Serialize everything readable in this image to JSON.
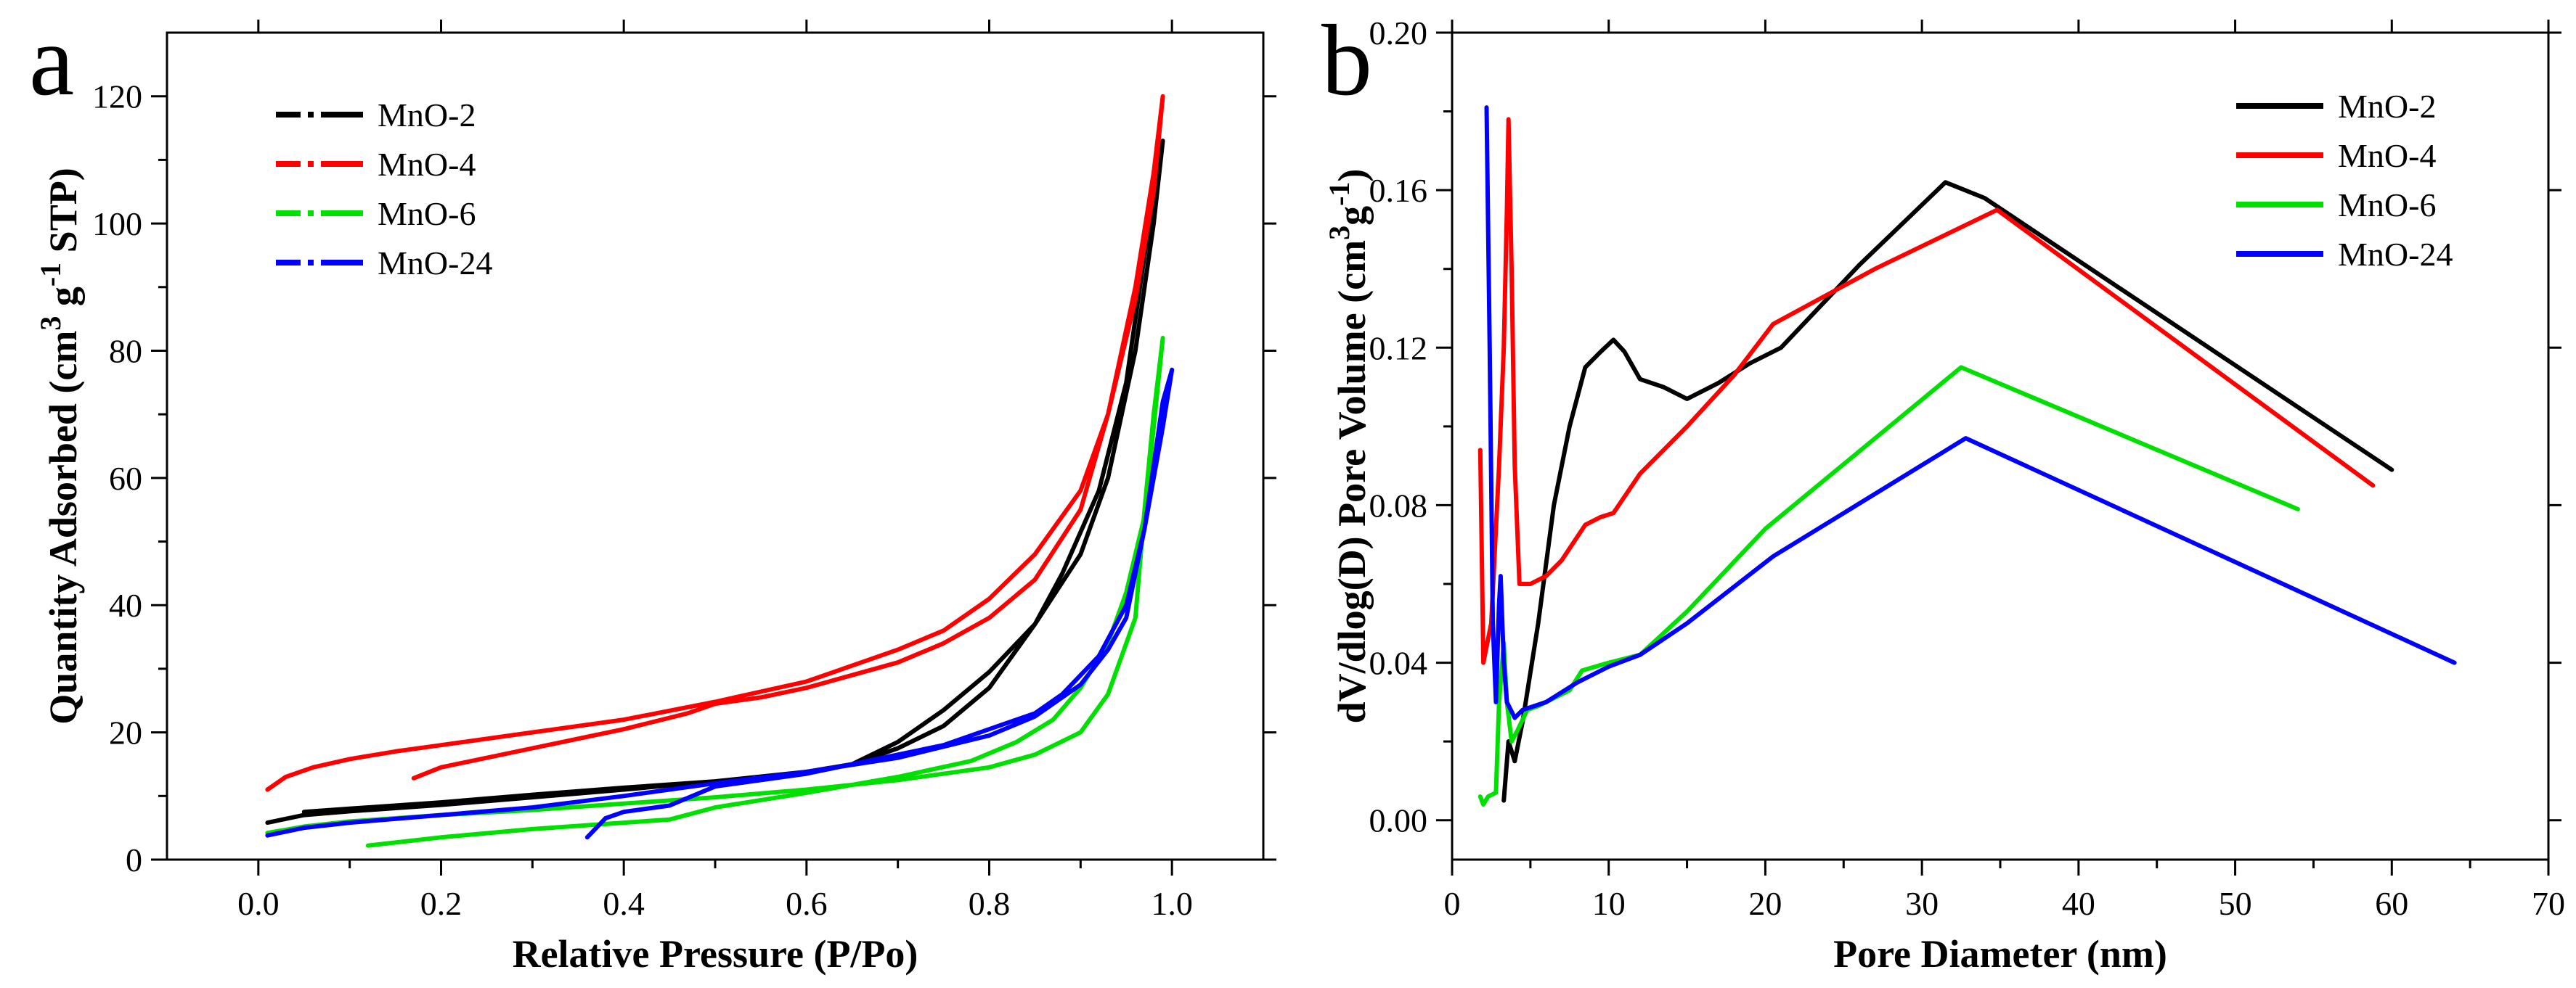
{
  "chart_data": [
    {
      "panel": "a",
      "type": "line",
      "xlabel": "Relative Pressure (P/Po)",
      "ylabel_parts": [
        "Quantity Adsorbed (cm",
        "3",
        " g",
        "-1",
        " STP)"
      ],
      "xlim": [
        -0.1,
        1.1
      ],
      "ylim": [
        0,
        130
      ],
      "xticks": [
        0.0,
        0.2,
        0.4,
        0.6,
        0.8,
        1.0
      ],
      "xtick_labels": [
        "0.0",
        "0.2",
        "0.4",
        "0.6",
        "0.8",
        "1.0"
      ],
      "yticks": [
        0,
        20,
        40,
        60,
        80,
        100,
        120
      ],
      "ytick_labels": [
        "0",
        "20",
        "40",
        "60",
        "80",
        "100",
        "120"
      ],
      "legend_position": "top-left",
      "series": [
        {
          "name": "MnO-2",
          "color": "#000000",
          "points": [
            [
              0.01,
              5.8
            ],
            [
              0.05,
              7.0
            ],
            [
              0.1,
              7.6
            ],
            [
              0.2,
              8.6
            ],
            [
              0.3,
              9.8
            ],
            [
              0.4,
              11.0
            ],
            [
              0.5,
              12.3
            ],
            [
              0.6,
              13.8
            ],
            [
              0.65,
              15.0
            ],
            [
              0.7,
              18.5
            ],
            [
              0.75,
              23.5
            ],
            [
              0.8,
              29.5
            ],
            [
              0.85,
              37.0
            ],
            [
              0.9,
              48.0
            ],
            [
              0.93,
              60.0
            ],
            [
              0.96,
              80.0
            ],
            [
              0.98,
              100.0
            ],
            [
              0.99,
              113.0
            ],
            [
              0.97,
              95.0
            ],
            [
              0.95,
              75.0
            ],
            [
              0.92,
              58.0
            ],
            [
              0.88,
              45.0
            ],
            [
              0.85,
              37.0
            ],
            [
              0.8,
              27.0
            ],
            [
              0.75,
              21.0
            ],
            [
              0.7,
              17.5
            ],
            [
              0.65,
              15.0
            ],
            [
              0.6,
              13.8
            ],
            [
              0.5,
              12.3
            ],
            [
              0.4,
              11.3
            ],
            [
              0.3,
              10.2
            ],
            [
              0.2,
              9.0
            ],
            [
              0.1,
              8.0
            ],
            [
              0.05,
              7.5
            ]
          ]
        },
        {
          "name": "MnO-4",
          "color": "#ff0000",
          "points": [
            [
              0.01,
              11.0
            ],
            [
              0.03,
              13.0
            ],
            [
              0.06,
              14.5
            ],
            [
              0.1,
              15.8
            ],
            [
              0.15,
              17.0
            ],
            [
              0.2,
              18.0
            ],
            [
              0.3,
              20.0
            ],
            [
              0.4,
              22.0
            ],
            [
              0.5,
              24.8
            ],
            [
              0.6,
              28.0
            ],
            [
              0.7,
              33.0
            ],
            [
              0.75,
              36.0
            ],
            [
              0.8,
              41.0
            ],
            [
              0.85,
              48.0
            ],
            [
              0.9,
              58.0
            ],
            [
              0.93,
              70.0
            ],
            [
              0.96,
              88.0
            ],
            [
              0.98,
              105.0
            ],
            [
              0.99,
              120.0
            ],
            [
              0.98,
              108.0
            ],
            [
              0.96,
              90.0
            ],
            [
              0.93,
              70.0
            ],
            [
              0.9,
              55.0
            ],
            [
              0.85,
              44.0
            ],
            [
              0.8,
              38.0
            ],
            [
              0.75,
              34.0
            ],
            [
              0.7,
              31.0
            ],
            [
              0.65,
              29.0
            ],
            [
              0.6,
              27.0
            ],
            [
              0.55,
              25.5
            ],
            [
              0.5,
              24.5
            ],
            [
              0.47,
              23.0
            ],
            [
              0.4,
              20.5
            ],
            [
              0.3,
              17.5
            ],
            [
              0.2,
              14.5
            ],
            [
              0.17,
              12.8
            ]
          ]
        },
        {
          "name": "MnO-6",
          "color": "#00e000",
          "points": [
            [
              0.01,
              4.2
            ],
            [
              0.05,
              5.2
            ],
            [
              0.1,
              6.0
            ],
            [
              0.2,
              7.0
            ],
            [
              0.3,
              7.8
            ],
            [
              0.4,
              8.8
            ],
            [
              0.5,
              9.8
            ],
            [
              0.6,
              11.0
            ],
            [
              0.7,
              12.5
            ],
            [
              0.8,
              14.5
            ],
            [
              0.85,
              16.5
            ],
            [
              0.9,
              20.0
            ],
            [
              0.93,
              26.0
            ],
            [
              0.96,
              38.0
            ],
            [
              0.97,
              55.0
            ],
            [
              0.98,
              70.0
            ],
            [
              0.99,
              82.0
            ],
            [
              0.98,
              68.0
            ],
            [
              0.97,
              54.0
            ],
            [
              0.95,
              42.0
            ],
            [
              0.93,
              34.0
            ],
            [
              0.9,
              27.0
            ],
            [
              0.87,
              22.0
            ],
            [
              0.83,
              18.5
            ],
            [
              0.78,
              15.5
            ],
            [
              0.7,
              13.0
            ],
            [
              0.6,
              10.5
            ],
            [
              0.5,
              8.2
            ],
            [
              0.45,
              6.3
            ],
            [
              0.4,
              5.8
            ],
            [
              0.3,
              4.8
            ],
            [
              0.2,
              3.5
            ],
            [
              0.12,
              2.2
            ]
          ]
        },
        {
          "name": "MnO-24",
          "color": "#0000ff",
          "points": [
            [
              0.01,
              3.8
            ],
            [
              0.05,
              5.0
            ],
            [
              0.1,
              5.8
            ],
            [
              0.2,
              7.0
            ],
            [
              0.3,
              8.2
            ],
            [
              0.4,
              10.0
            ],
            [
              0.5,
              12.0
            ],
            [
              0.6,
              13.8
            ],
            [
              0.7,
              16.0
            ],
            [
              0.8,
              19.5
            ],
            [
              0.85,
              22.5
            ],
            [
              0.9,
              27.5
            ],
            [
              0.93,
              33.0
            ],
            [
              0.95,
              38.0
            ],
            [
              0.97,
              52.0
            ],
            [
              0.98,
              62.0
            ],
            [
              0.99,
              72.0
            ],
            [
              1.0,
              77.0
            ],
            [
              0.99,
              68.0
            ],
            [
              0.97,
              52.0
            ],
            [
              0.95,
              40.0
            ],
            [
              0.92,
              32.0
            ],
            [
              0.88,
              26.0
            ],
            [
              0.85,
              23.0
            ],
            [
              0.8,
              20.5
            ],
            [
              0.75,
              18.0
            ],
            [
              0.7,
              16.5
            ],
            [
              0.6,
              13.5
            ],
            [
              0.5,
              11.5
            ],
            [
              0.45,
              8.5
            ],
            [
              0.4,
              7.5
            ],
            [
              0.38,
              6.5
            ],
            [
              0.36,
              3.5
            ]
          ]
        }
      ]
    },
    {
      "panel": "b",
      "type": "line",
      "xlabel": "Pore Diameter (nm)",
      "ylabel_parts": [
        "dV/dlog(D) Pore Volume (cm",
        "3",
        "g",
        "-1",
        ")"
      ],
      "xlim": [
        0,
        70
      ],
      "ylim": [
        -0.01,
        0.2
      ],
      "xticks": [
        0,
        10,
        20,
        30,
        40,
        50,
        60,
        70
      ],
      "xtick_labels": [
        "0",
        "10",
        "20",
        "30",
        "40",
        "50",
        "60",
        "70"
      ],
      "yticks": [
        0,
        0.04,
        0.08,
        0.12,
        0.16,
        0.2
      ],
      "ytick_labels": [
        "0.00",
        "0.04",
        "0.08",
        "0.12",
        "0.16",
        "0.20"
      ],
      "legend_position": "top-right",
      "series": [
        {
          "name": "MnO-2",
          "color": "#000000",
          "points": [
            [
              3.3,
              0.005
            ],
            [
              3.6,
              0.02
            ],
            [
              4.0,
              0.015
            ],
            [
              4.5,
              0.025
            ],
            [
              5.5,
              0.05
            ],
            [
              6.5,
              0.08
            ],
            [
              7.5,
              0.1
            ],
            [
              8.5,
              0.115
            ],
            [
              9.5,
              0.119
            ],
            [
              10.3,
              0.122
            ],
            [
              11.0,
              0.119
            ],
            [
              12.0,
              0.112
            ],
            [
              13.5,
              0.11
            ],
            [
              15.0,
              0.107
            ],
            [
              17.0,
              0.111
            ],
            [
              19.0,
              0.116
            ],
            [
              21.0,
              0.12
            ],
            [
              26.0,
              0.141
            ],
            [
              31.5,
              0.162
            ],
            [
              34.0,
              0.158
            ],
            [
              60.0,
              0.089
            ]
          ]
        },
        {
          "name": "MnO-4",
          "color": "#ff0000",
          "points": [
            [
              1.8,
              0.094
            ],
            [
              2.0,
              0.04
            ],
            [
              2.5,
              0.05
            ],
            [
              3.0,
              0.09
            ],
            [
              3.3,
              0.12
            ],
            [
              3.5,
              0.155
            ],
            [
              3.6,
              0.178
            ],
            [
              3.8,
              0.14
            ],
            [
              4.0,
              0.09
            ],
            [
              4.3,
              0.06
            ],
            [
              5.0,
              0.06
            ],
            [
              6.0,
              0.062
            ],
            [
              7.0,
              0.066
            ],
            [
              8.5,
              0.075
            ],
            [
              9.5,
              0.077
            ],
            [
              10.3,
              0.078
            ],
            [
              12.0,
              0.088
            ],
            [
              15.0,
              0.1
            ],
            [
              18.0,
              0.113
            ],
            [
              20.5,
              0.126
            ],
            [
              27.0,
              0.14
            ],
            [
              34.8,
              0.155
            ],
            [
              58.8,
              0.085
            ]
          ]
        },
        {
          "name": "MnO-6",
          "color": "#00e000",
          "points": [
            [
              1.8,
              0.006
            ],
            [
              2.0,
              0.004
            ],
            [
              2.3,
              0.006
            ],
            [
              2.8,
              0.007
            ],
            [
              3.0,
              0.03
            ],
            [
              3.3,
              0.045
            ],
            [
              3.5,
              0.03
            ],
            [
              3.8,
              0.02
            ],
            [
              4.2,
              0.023
            ],
            [
              4.8,
              0.028
            ],
            [
              5.5,
              0.029
            ],
            [
              6.5,
              0.031
            ],
            [
              7.5,
              0.033
            ],
            [
              8.3,
              0.038
            ],
            [
              10.0,
              0.04
            ],
            [
              12.0,
              0.042
            ],
            [
              15.0,
              0.053
            ],
            [
              20.0,
              0.074
            ],
            [
              32.5,
              0.115
            ],
            [
              54.0,
              0.079
            ]
          ]
        },
        {
          "name": "MnO-24",
          "color": "#0000ff",
          "points": [
            [
              2.2,
              0.181
            ],
            [
              2.4,
              0.12
            ],
            [
              2.6,
              0.05
            ],
            [
              2.8,
              0.03
            ],
            [
              3.0,
              0.055
            ],
            [
              3.1,
              0.062
            ],
            [
              3.3,
              0.04
            ],
            [
              3.5,
              0.03
            ],
            [
              4.0,
              0.026
            ],
            [
              4.5,
              0.028
            ],
            [
              6.0,
              0.03
            ],
            [
              8.0,
              0.035
            ],
            [
              10.0,
              0.039
            ],
            [
              12.0,
              0.042
            ],
            [
              15.0,
              0.05
            ],
            [
              20.5,
              0.067
            ],
            [
              32.8,
              0.097
            ],
            [
              64.0,
              0.04
            ]
          ]
        }
      ]
    }
  ]
}
